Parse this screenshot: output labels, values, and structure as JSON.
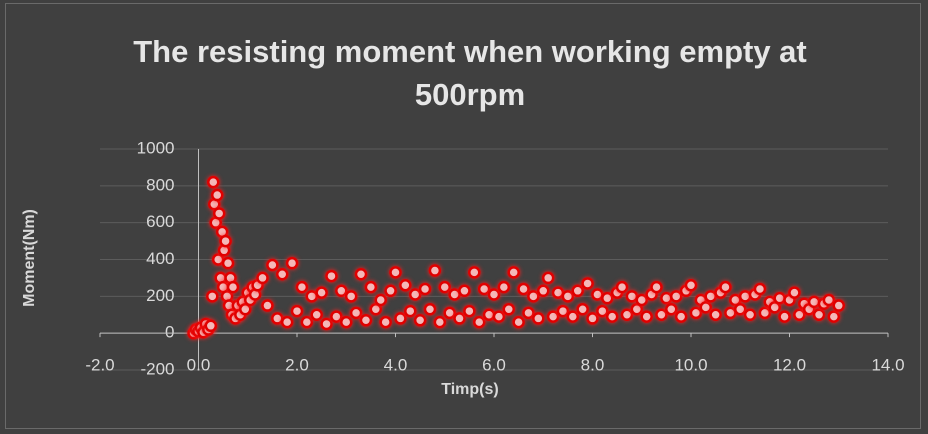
{
  "chart_data": {
    "type": "scatter",
    "title": "The resisting moment when working empty at 500rpm",
    "x_label": "Timp(s)",
    "y_label": "Moment(Nm)",
    "xlim": [
      -2,
      14
    ],
    "xticks": [
      {
        "value": -2,
        "label": "-2.0"
      },
      {
        "value": 0,
        "label": "0.0"
      },
      {
        "value": 2,
        "label": "2.0"
      },
      {
        "value": 4,
        "label": "4.0"
      },
      {
        "value": 6,
        "label": "6.0"
      },
      {
        "value": 8,
        "label": "8.0"
      },
      {
        "value": 10,
        "label": "10.0"
      },
      {
        "value": 12,
        "label": "12.0"
      },
      {
        "value": 14,
        "label": "14.0"
      }
    ],
    "ylim": [
      -200,
      1000
    ],
    "yticks": [
      -200,
      0,
      200,
      400,
      600,
      800,
      1000
    ],
    "grid": true,
    "series": [
      {
        "color": "#e00000",
        "marker_fill": "#f4b8b8",
        "x": [
          -0.1,
          -0.05,
          0,
          0.05,
          0.1,
          0.15,
          0.2,
          0.25,
          0.28,
          0.3,
          0.32,
          0.35,
          0.38,
          0.4,
          0.42,
          0.45,
          0.48,
          0.5,
          0.52,
          0.55,
          0.58,
          0.6,
          0.62,
          0.65,
          0.68,
          0.7,
          0.75,
          0.8,
          0.85,
          0.9,
          0.95,
          1.0,
          1.05,
          1.1,
          1.15,
          1.2,
          1.3,
          1.4,
          1.5,
          1.6,
          1.7,
          1.8,
          1.9,
          2.0,
          2.1,
          2.2,
          2.3,
          2.4,
          2.5,
          2.6,
          2.7,
          2.8,
          2.9,
          3.0,
          3.1,
          3.2,
          3.3,
          3.4,
          3.5,
          3.6,
          3.7,
          3.8,
          3.9,
          4.0,
          4.1,
          4.2,
          4.3,
          4.4,
          4.5,
          4.6,
          4.7,
          4.8,
          4.9,
          5.0,
          5.1,
          5.2,
          5.3,
          5.4,
          5.5,
          5.6,
          5.7,
          5.8,
          5.9,
          6.0,
          6.1,
          6.2,
          6.3,
          6.4,
          6.5,
          6.6,
          6.7,
          6.8,
          6.9,
          7.0,
          7.1,
          7.2,
          7.3,
          7.4,
          7.5,
          7.6,
          7.7,
          7.8,
          7.9,
          8.0,
          8.1,
          8.2,
          8.3,
          8.4,
          8.5,
          8.6,
          8.7,
          8.8,
          8.9,
          9.0,
          9.1,
          9.2,
          9.3,
          9.4,
          9.5,
          9.6,
          9.7,
          9.8,
          9.9,
          10.0,
          10.1,
          10.2,
          10.3,
          10.4,
          10.5,
          10.6,
          10.7,
          10.8,
          10.9,
          11.0,
          11.1,
          11.2,
          11.3,
          11.4,
          11.5,
          11.6,
          11.7,
          11.8,
          11.9,
          12.0,
          12.1,
          12.2,
          12.3,
          12.4,
          12.5,
          12.6,
          12.7,
          12.8,
          12.9,
          13.0
        ],
        "values": [
          0,
          20,
          10,
          30,
          5,
          50,
          20,
          40,
          200,
          820,
          700,
          600,
          750,
          400,
          650,
          300,
          550,
          250,
          450,
          500,
          200,
          380,
          150,
          300,
          100,
          250,
          80,
          150,
          100,
          170,
          130,
          220,
          180,
          250,
          210,
          260,
          300,
          150,
          370,
          80,
          320,
          60,
          380,
          120,
          250,
          60,
          200,
          100,
          220,
          50,
          310,
          90,
          230,
          60,
          200,
          110,
          320,
          70,
          250,
          130,
          180,
          60,
          230,
          330,
          80,
          260,
          120,
          210,
          70,
          240,
          130,
          340,
          60,
          250,
          110,
          210,
          80,
          230,
          120,
          330,
          60,
          240,
          100,
          210,
          90,
          250,
          130,
          330,
          60,
          240,
          110,
          200,
          80,
          230,
          300,
          90,
          220,
          120,
          200,
          90,
          230,
          130,
          270,
          80,
          210,
          120,
          190,
          90,
          220,
          250,
          100,
          200,
          130,
          180,
          90,
          210,
          250,
          100,
          190,
          130,
          200,
          90,
          230,
          260,
          110,
          180,
          140,
          200,
          100,
          220,
          250,
          110,
          180,
          130,
          200,
          100,
          210,
          240,
          110,
          170,
          140,
          190,
          90,
          180,
          220,
          100,
          160,
          130,
          170,
          100,
          160,
          180,
          90,
          150
        ]
      }
    ]
  }
}
